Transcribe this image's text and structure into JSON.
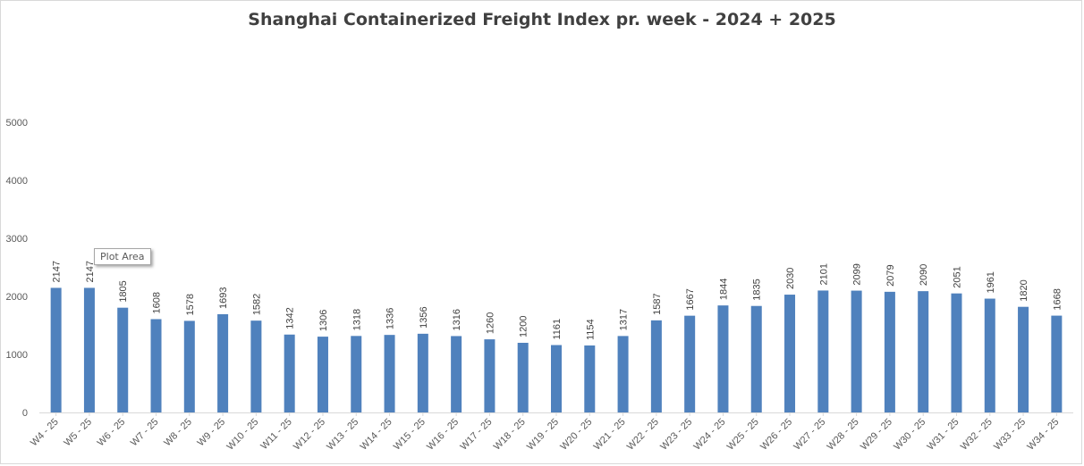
{
  "chart_data": {
    "type": "bar",
    "title": "Shanghai Containerized Freight Index pr. week - 2024 + 2025",
    "xlabel": "",
    "ylabel": "",
    "ylim": [
      0,
      5000
    ],
    "yticks": [
      0,
      1000,
      2000,
      3000,
      4000,
      5000
    ],
    "grid": false,
    "legend": "none",
    "bar_color": "#4f81bd",
    "categories": [
      "W4 - 25",
      "W5 - 25",
      "W6 - 25",
      "W7 - 25",
      "W8 - 25",
      "W9 - 25",
      "W10 - 25",
      "W11 - 25",
      "W12 - 25",
      "W13 - 25",
      "W14 - 25",
      "W15 - 25",
      "W16 - 25",
      "W17 - 25",
      "W18 - 25",
      "W19 - 25",
      "W20 - 25",
      "W21 - 25",
      "W22 - 25",
      "W23 - 25",
      "W24 - 25",
      "W25 - 25",
      "W26 - 25",
      "W27 - 25",
      "W28 - 25",
      "W29 - 25",
      "W30 - 25",
      "W31 - 25",
      "W32 - 25",
      "W33 - 25",
      "W34 - 25"
    ],
    "values": [
      2147,
      2147,
      1805,
      1608,
      1578,
      1693,
      1582,
      1342,
      1306,
      1318,
      1336,
      1356,
      1316,
      1260,
      1200,
      1161,
      1154,
      1317,
      1587,
      1667,
      1844,
      1835,
      2030,
      2101,
      2099,
      2079,
      2090,
      2051,
      1961,
      1820,
      1668
    ]
  },
  "tooltip": {
    "label": "Plot Area"
  }
}
